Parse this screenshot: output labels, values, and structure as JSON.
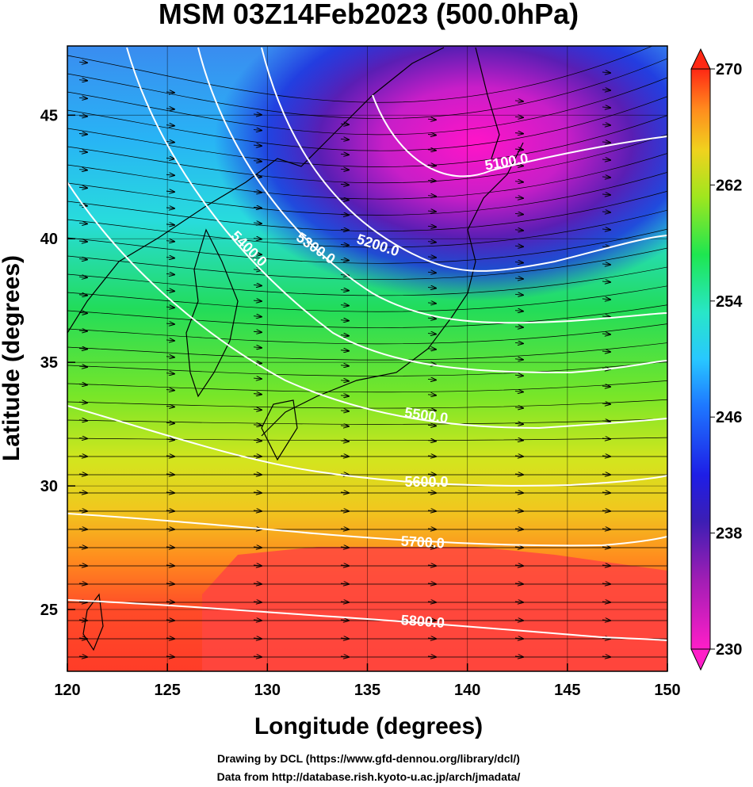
{
  "title": "MSM 03Z14Feb2023 (500.0hPa)",
  "x_axis": {
    "label": "Longitude (degrees)",
    "ticks": [
      "120",
      "125",
      "130",
      "135",
      "140",
      "145",
      "150"
    ],
    "range": [
      120,
      150
    ]
  },
  "y_axis": {
    "label": "Latitude  (degrees)",
    "ticks": [
      "25",
      "30",
      "35",
      "40",
      "45"
    ],
    "range": [
      22.5,
      47.8
    ]
  },
  "colorbar": {
    "ticks": [
      "270",
      "262",
      "254",
      "246",
      "238",
      "230"
    ],
    "range": [
      230,
      270
    ],
    "colors": [
      "#ff1ec8",
      "#7a1eb4",
      "#1e1ee6",
      "#28a0ff",
      "#28e6e6",
      "#1ee650",
      "#a0e61e",
      "#f0e61e",
      "#ff961e",
      "#ff2814"
    ]
  },
  "contours": [
    {
      "value": 5100,
      "label": "5100.0"
    },
    {
      "value": 5200,
      "label": "5200.0"
    },
    {
      "value": 5300,
      "label": "5300.0"
    },
    {
      "value": 5400,
      "label": "5400.0"
    },
    {
      "value": 5500,
      "label": "5500.0"
    },
    {
      "value": 5600,
      "label": "5600.0"
    },
    {
      "value": 5700,
      "label": "5700.0"
    },
    {
      "value": 5800,
      "label": "5800.0"
    }
  ],
  "credits": {
    "line1": "Drawing by DCL (https://www.gfd-dennou.org/library/dcl/)",
    "line2": "Data from http://database.rish.kyoto-u.ac.jp/arch/jmadata/"
  }
}
